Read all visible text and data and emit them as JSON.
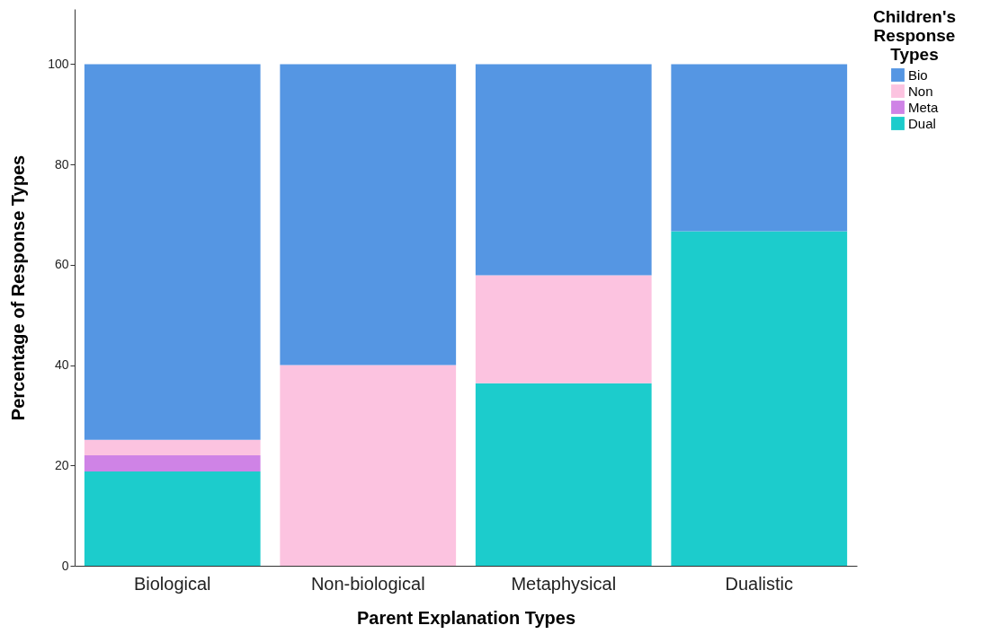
{
  "chart_data": {
    "type": "bar",
    "stacked": true,
    "xlabel": "Parent Explanation Types",
    "ylabel": "Percentage of Response Types",
    "legend_title": "Children's Response Types",
    "legend": "top right",
    "grid": false,
    "categories": [
      "Biological",
      "Non-biological",
      "Metaphysical",
      "Dualistic"
    ],
    "ylim": [
      0,
      111
    ],
    "yticks": [
      0,
      20,
      40,
      60,
      80,
      100
    ],
    "series": [
      {
        "name": "Dual",
        "color": "#1ccccc",
        "values": [
          18.8,
          null,
          36.4,
          66.7
        ]
      },
      {
        "name": "Meta",
        "color": "#cf83e6",
        "values": [
          3.2,
          null,
          null,
          null
        ]
      },
      {
        "name": "Non",
        "color": "#fcc3e0",
        "values": [
          3.1,
          40,
          21.5,
          null
        ]
      },
      {
        "name": "Bio",
        "color": "#5596e3",
        "values": [
          74.9,
          60,
          42.1,
          33.3
        ]
      }
    ]
  }
}
